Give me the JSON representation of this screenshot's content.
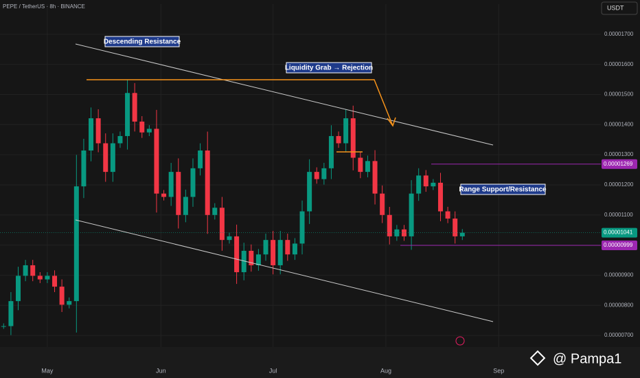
{
  "header": {
    "symbol": "PEPE / TetherUS · 8h · BINANCE",
    "currency": "USDT"
  },
  "chart_data": {
    "type": "candlestick",
    "values": [
      7.31e-06,
      8.14e-06,
      8.98e-06,
      9.33e-06,
      8.98e-06,
      8.86e-06,
      8.98e-06,
      8.62e-06,
      8.02e-06,
      8.14e-06,
      1.195e-05,
      1.314e-05,
      1.421e-05,
      1.338e-05,
      1.243e-05,
      1.338e-05,
      1.362e-05,
      1.505e-05,
      1.41e-05,
      1.374e-05,
      1.386e-05,
      1.171e-05,
      1.16e-05,
      1.243e-05,
      1.1e-05,
      1.16e-05,
      1.255e-05,
      1.314e-05,
      1.1e-05,
      1.124e-05,
      1.017e-05,
      1.029e-05,
      9.1e-06,
      9.81e-06,
      9.33e-06,
      9.69e-06,
      1.017e-05,
      9.33e-06,
      1.017e-05,
      9.69e-06,
      1.005e-05,
      1.112e-05,
      1.243e-05,
      1.219e-05,
      1.255e-05,
      1.362e-05,
      1.338e-05,
      1.421e-05,
      1.29e-05,
      1.243e-05,
      1.279e-05,
      1.171e-05,
      1.1e-05,
      1.029e-05,
      1.052e-05,
      1.029e-05,
      1.171e-05,
      1.231e-05,
      1.195e-05,
      1.207e-05,
      1.112e-05,
      1.088e-05,
      1.029e-05,
      1.041e-05
    ],
    "up_color": "#089981",
    "down_color": "#f23645",
    "ylim": [
      6.5e-06,
      1.8e-05
    ],
    "yticks": [
      {
        "value": 7e-06,
        "label": "0.00000700"
      },
      {
        "value": 8e-06,
        "label": "0.00000800"
      },
      {
        "value": 9e-06,
        "label": "0.00000900"
      },
      {
        "value": 1e-05,
        "label": "0.00001000"
      },
      {
        "value": 1.1e-05,
        "label": "0.00001100"
      },
      {
        "value": 1.2e-05,
        "label": "0.00001200"
      },
      {
        "value": 1.3e-05,
        "label": "0.00001300"
      },
      {
        "value": 1.4e-05,
        "label": "0.00001400"
      },
      {
        "value": 1.5e-05,
        "label": "0.00001500"
      },
      {
        "value": 1.6e-05,
        "label": "0.00001600"
      },
      {
        "value": 1.7e-05,
        "label": "0.00001700"
      }
    ],
    "xlim": [
      -0.5,
      87.4
    ],
    "xticks": [
      {
        "value": 6,
        "label": "May"
      },
      {
        "value": 21.6,
        "label": "Jun"
      },
      {
        "value": 37,
        "label": "Jul"
      },
      {
        "value": 52.5,
        "label": "Aug"
      },
      {
        "value": 68,
        "label": "Sep"
      }
    ],
    "grid": true,
    "levels": [
      {
        "value": 1.269e-05,
        "label": "0.00001269",
        "color": "#9c27b0"
      },
      {
        "value": 9.99e-06,
        "label": "0.00000999",
        "color": "#9c27b0"
      }
    ],
    "last_price": {
      "value": 1.041e-05,
      "label": "0.00001041",
      "color": "#089981"
    },
    "annotations": [
      "Descending Resistance",
      "Liquidity Grab → Rejection",
      "Range Support/Resistance"
    ]
  },
  "watermark": "@ Pampa1"
}
